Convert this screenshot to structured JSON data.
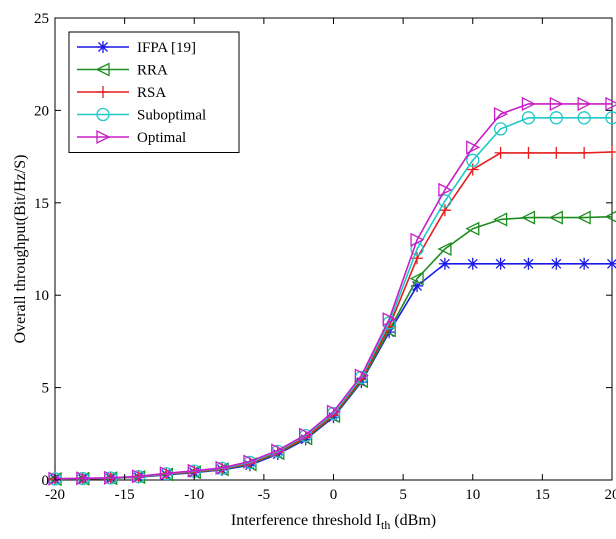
{
  "chart_data": {
    "type": "line",
    "title": "",
    "xlabel": "Interference threshold I",
    "xlabel_sub": "th",
    "xlabel_unit": " (dBm)",
    "ylabel": "Overall throughput(Bit/Hz/S)",
    "xlim": [
      -20,
      20
    ],
    "ylim": [
      0,
      25
    ],
    "xticks": [
      -20,
      -15,
      -10,
      -5,
      0,
      5,
      10,
      15,
      20
    ],
    "yticks": [
      0,
      5,
      10,
      15,
      20,
      25
    ],
    "grid": false,
    "legend_position": "top-left",
    "x": [
      -20,
      -18,
      -16,
      -14,
      -12,
      -10,
      -8,
      -6,
      -4,
      -2,
      0,
      2,
      4,
      6,
      8,
      10,
      12,
      14,
      16,
      18,
      20
    ],
    "series": [
      {
        "name": "IFPA [19]",
        "color": "#1a1ae6",
        "marker": "asterisk",
        "values": [
          0.05,
          0.07,
          0.1,
          0.15,
          0.28,
          0.4,
          0.55,
          0.8,
          1.4,
          2.2,
          3.4,
          5.3,
          8.0,
          10.5,
          11.7,
          11.7,
          11.7,
          11.7,
          11.7,
          11.7,
          11.7
        ]
      },
      {
        "name": "RRA",
        "color": "#1e8c1e",
        "marker": "triangle-left",
        "values": [
          0.05,
          0.07,
          0.1,
          0.16,
          0.3,
          0.42,
          0.58,
          0.85,
          1.45,
          2.25,
          3.45,
          5.35,
          8.1,
          10.9,
          12.5,
          13.6,
          14.1,
          14.2,
          14.2,
          14.2,
          14.25
        ]
      },
      {
        "name": "RSA",
        "color": "#e61e1e",
        "marker": "plus",
        "values": [
          0.05,
          0.07,
          0.1,
          0.17,
          0.32,
          0.45,
          0.6,
          0.9,
          1.5,
          2.3,
          3.5,
          5.45,
          8.3,
          12.0,
          14.6,
          16.8,
          17.7,
          17.7,
          17.7,
          17.7,
          17.75
        ]
      },
      {
        "name": "Suboptimal",
        "color": "#1ec8c8",
        "marker": "circle",
        "values": [
          0.06,
          0.08,
          0.11,
          0.18,
          0.34,
          0.48,
          0.63,
          0.95,
          1.55,
          2.4,
          3.6,
          5.55,
          8.5,
          12.5,
          15.1,
          17.3,
          19.0,
          19.6,
          19.6,
          19.6,
          19.6
        ]
      },
      {
        "name": "Optimal",
        "color": "#c81ec8",
        "marker": "triangle-right",
        "values": [
          0.07,
          0.09,
          0.12,
          0.2,
          0.36,
          0.5,
          0.66,
          1.0,
          1.6,
          2.45,
          3.7,
          5.65,
          8.7,
          13.0,
          15.7,
          18.0,
          19.8,
          20.35,
          20.35,
          20.35,
          20.35
        ]
      }
    ]
  }
}
